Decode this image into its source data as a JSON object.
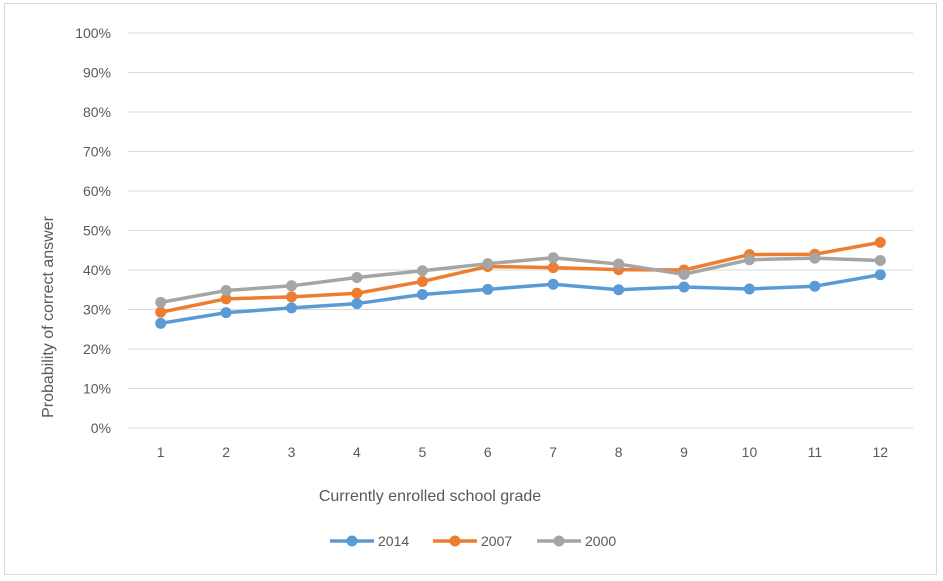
{
  "chart_data": {
    "type": "line",
    "title": "",
    "xlabel": "Currently enrolled school grade",
    "ylabel": "Probability of correct answer",
    "categories": [
      "1",
      "2",
      "3",
      "4",
      "5",
      "6",
      "7",
      "8",
      "9",
      "10",
      "11",
      "12"
    ],
    "y_ticks": [
      "0%",
      "10%",
      "20%",
      "30%",
      "40%",
      "50%",
      "60%",
      "70%",
      "80%",
      "90%",
      "100%"
    ],
    "ylim": [
      0,
      100
    ],
    "grid": true,
    "legend_position": "bottom",
    "series": [
      {
        "name": "2014",
        "color": "#5b9bd5",
        "values": [
          26.5,
          29.2,
          30.4,
          31.5,
          33.8,
          35.1,
          36.4,
          35.0,
          35.7,
          35.2,
          35.9,
          38.8
        ]
      },
      {
        "name": "2007",
        "color": "#ed7d31",
        "values": [
          29.3,
          32.7,
          33.2,
          34.1,
          37.1,
          40.9,
          40.6,
          40.1,
          40.0,
          43.9,
          44.0,
          47.0
        ]
      },
      {
        "name": "2000",
        "color": "#a5a5a5",
        "values": [
          31.8,
          34.8,
          36.0,
          38.1,
          39.8,
          41.6,
          43.1,
          41.5,
          38.9,
          42.6,
          43.0,
          42.4
        ]
      }
    ]
  }
}
